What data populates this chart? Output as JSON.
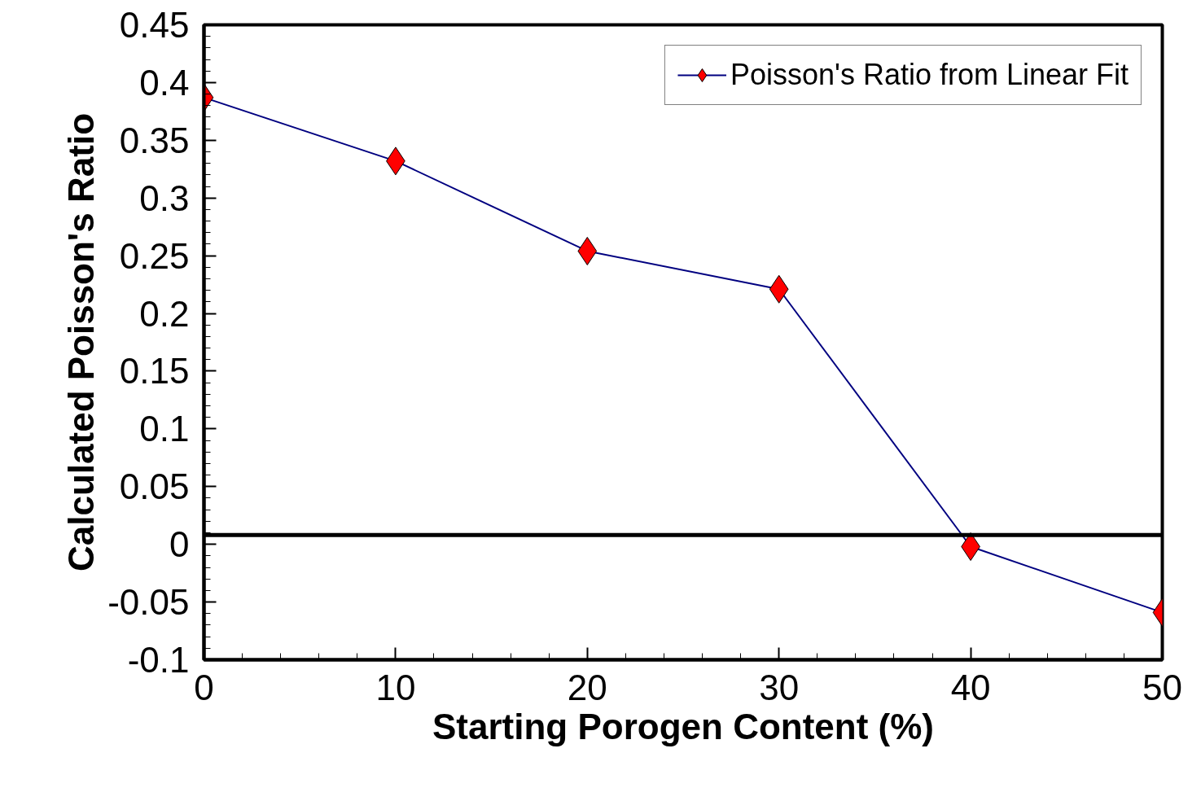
{
  "chart_data": {
    "type": "line",
    "xlabel": "Starting Porogen Content (%)",
    "ylabel": "Calculated Poisson's Ratio",
    "x": [
      0,
      10,
      20,
      30,
      40,
      50
    ],
    "series": [
      {
        "name": "Poisson's Ratio from Linear Fit",
        "color": "#000080",
        "colors": [
          "#ff0000",
          "#ff0000",
          "#ff0000",
          "#ff0000",
          "#ff0000",
          "#ff0000"
        ],
        "values": [
          0.387,
          0.332,
          0.254,
          0.221,
          -0.002,
          -0.059
        ]
      }
    ],
    "xlim": [
      0,
      50
    ],
    "xticks": [
      0,
      10,
      20,
      30,
      40,
      50
    ],
    "ylim": [
      -0.1,
      0.45
    ],
    "yticks": [
      {
        "value": -0.1,
        "label": "-0.1"
      },
      {
        "value": -0.05,
        "label": "-0.05"
      },
      0,
      {
        "value": 0.05,
        "label": "0.05"
      },
      {
        "value": 0.1,
        "label": "0.1"
      },
      {
        "value": 0.15,
        "label": "0.15"
      },
      {
        "value": 0.2,
        "label": "0.2"
      },
      {
        "value": 0.25,
        "label": "0.25"
      },
      {
        "value": 0.3,
        "label": "0.3"
      },
      {
        "value": 0.35,
        "label": "0.35"
      },
      {
        "value": 0.4,
        "label": "0.4"
      },
      {
        "value": 0.45,
        "label": "0.45"
      }
    ],
    "ref_lines": [
      {
        "axis": "y",
        "value": 0.008,
        "color": "#000000"
      }
    ],
    "marker": "diamond",
    "line_style": "solid",
    "grid": false,
    "legend": "top right"
  }
}
